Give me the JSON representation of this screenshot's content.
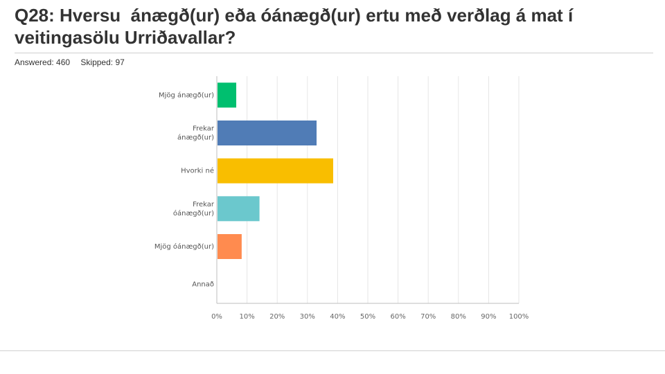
{
  "question": {
    "title": "Q28: Hversu  ánægð(ur) eða óánægð(ur) ertu með verðlag á mat í veitingasölu Urriðavallar?",
    "answered_label": "Answered: 460",
    "skipped_label": "Skipped: 97"
  },
  "chart_data": {
    "type": "bar",
    "orientation": "horizontal",
    "categories": [
      [
        "Mjög ánægð(ur)"
      ],
      [
        "Frekar",
        "ánægð(ur)"
      ],
      [
        "Hvorki né"
      ],
      [
        "Frekar",
        "óánægð(ur)"
      ],
      [
        "Mjög óánægð(ur)"
      ],
      [
        "Annað"
      ]
    ],
    "values": [
      6.2,
      32.8,
      38.3,
      13.9,
      8.0,
      0
    ],
    "colors": [
      "#00bf6f",
      "#507cb6",
      "#f9be00",
      "#6bc8cd",
      "#ff8b4f",
      "#cccccc"
    ],
    "xlim": [
      0,
      100
    ],
    "ticks": [
      0,
      10,
      20,
      30,
      40,
      50,
      60,
      70,
      80,
      90,
      100
    ],
    "tick_labels": [
      "0%",
      "10%",
      "20%",
      "30%",
      "40%",
      "50%",
      "60%",
      "70%",
      "80%",
      "90%",
      "100%"
    ],
    "grid": true
  }
}
